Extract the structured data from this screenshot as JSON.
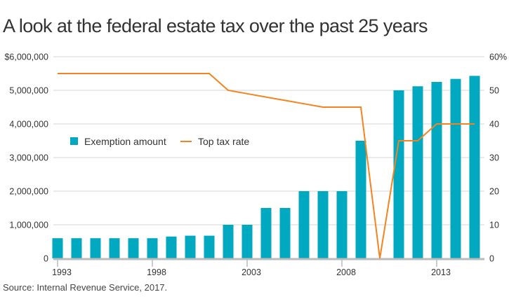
{
  "title": "A look at the federal estate tax over the past 25 years",
  "source": "Source: Internal Revenue Service, 2017.",
  "colors": {
    "bar": "#00a9bf",
    "line": "#f5831f",
    "grid": "#d4d4d4",
    "axis": "#bbbbbb"
  },
  "chart_data": {
    "type": "bar",
    "title": "A look at the federal estate tax over the past 25 years",
    "xlabel": "",
    "ylabel": "",
    "x": [
      1993,
      1994,
      1995,
      1996,
      1997,
      1998,
      1999,
      2000,
      2001,
      2002,
      2003,
      2004,
      2005,
      2006,
      2007,
      2008,
      2009,
      2010,
      2011,
      2012,
      2013,
      2014,
      2015
    ],
    "x_ticks": [
      "1993",
      "1998",
      "2003",
      "2008",
      "2013"
    ],
    "series": [
      {
        "name": "Exemption amount",
        "type": "bar",
        "axis": "left",
        "values": [
          600000,
          600000,
          600000,
          600000,
          600000,
          600000,
          650000,
          675000,
          675000,
          1000000,
          1000000,
          1500000,
          1500000,
          2000000,
          2000000,
          2000000,
          3500000,
          0,
          5000000,
          5120000,
          5250000,
          5340000,
          5430000
        ]
      },
      {
        "name": "Top tax rate",
        "type": "line",
        "axis": "right",
        "values": [
          55,
          55,
          55,
          55,
          55,
          55,
          55,
          55,
          55,
          50,
          49,
          48,
          47,
          46,
          45,
          45,
          45,
          0,
          35,
          35,
          40,
          40,
          40
        ]
      }
    ],
    "y_left": {
      "range": [
        0,
        6000000
      ],
      "ticks": [
        "0",
        "1,000,000",
        "2,000,000",
        "3,000,000",
        "4,000,000",
        "5,000,000",
        "$6,000,000"
      ]
    },
    "y_right": {
      "range": [
        0,
        60
      ],
      "ticks": [
        "0",
        "10",
        "20",
        "30",
        "40",
        "50",
        "60%"
      ]
    },
    "grid": true,
    "legend": {
      "placement": "left-middle",
      "entries": [
        "Exemption amount",
        "Top tax rate"
      ]
    }
  }
}
